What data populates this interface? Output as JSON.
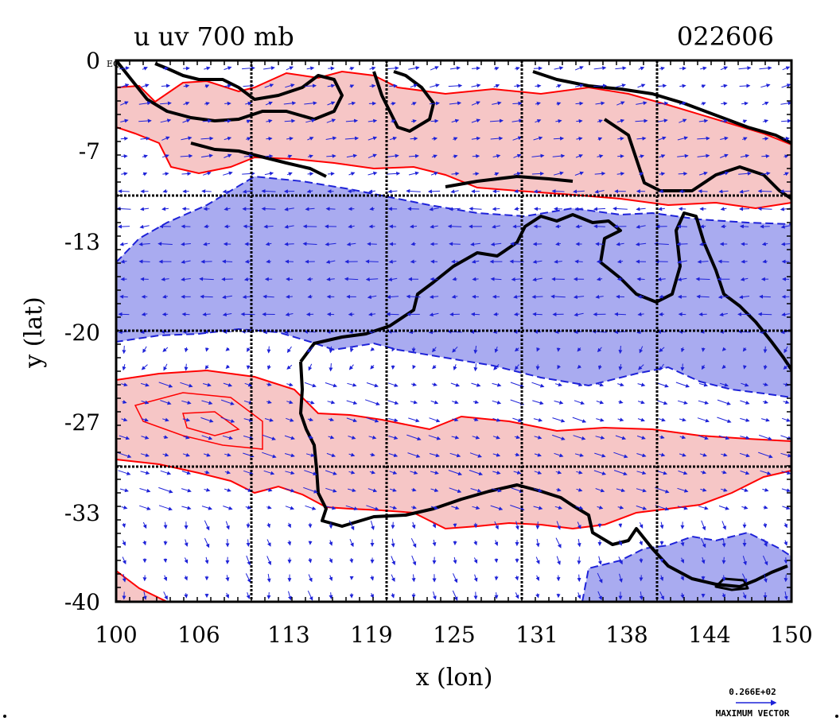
{
  "title": "u uv 700 mb",
  "date_code": "022606",
  "corner_label": "EQ",
  "x_axis": {
    "label": "x (lon)",
    "ticks": [
      "100",
      "106",
      "113",
      "119",
      "125",
      "131",
      "138",
      "144",
      "150"
    ]
  },
  "y_axis": {
    "label": "y (lat)",
    "ticks": [
      "0",
      "-7",
      "-13",
      "-20",
      "-27",
      "-33",
      "-40"
    ]
  },
  "vector_legend": {
    "value": "0.266E+02",
    "label": "MAXIMUM VECTOR"
  },
  "colors": {
    "positive_fill": "#f6c6c6",
    "positive_line": "#ff0000",
    "negative_fill": "#a9abf0",
    "negative_line": "#1e22d8",
    "arrows": "#1e22d8",
    "coast": "#000000"
  },
  "chart_data": {
    "type": "contour-map",
    "variable": "u",
    "overlay": "uv vectors",
    "level": "700 mb",
    "x_range": [
      100,
      150
    ],
    "y_range": [
      -40,
      0
    ],
    "grid_lines_x": [
      110,
      120,
      130,
      140
    ],
    "grid_lines_y": [
      -10,
      -20,
      -30
    ],
    "regions": {
      "positive_u_bands": [
        [
          -2,
          -10
        ],
        [
          -23,
          -34
        ]
      ],
      "negative_u_bands": [
        [
          -10,
          -21
        ],
        [
          -36,
          -40
        ]
      ]
    }
  }
}
